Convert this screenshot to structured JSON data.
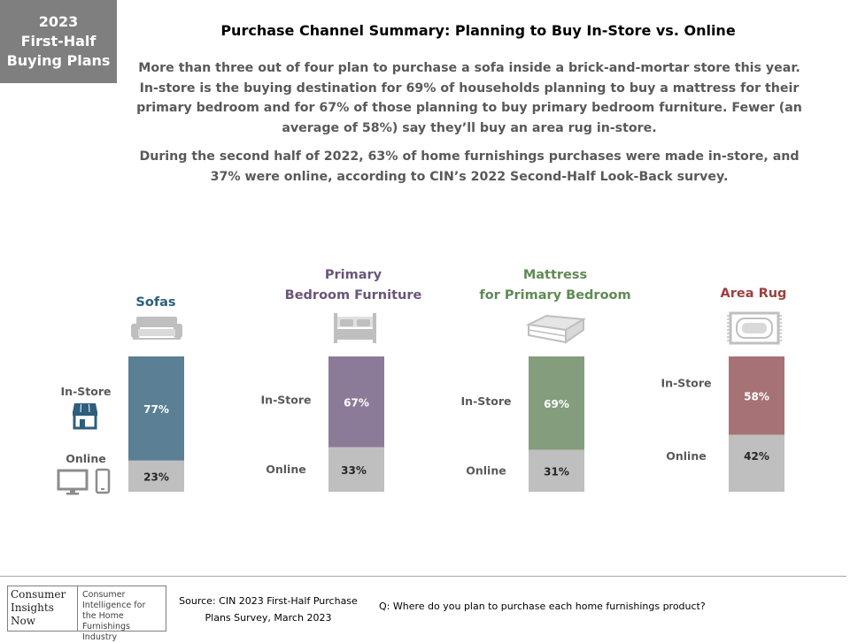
{
  "badge": {
    "line1": "2023",
    "line2": "First-Half",
    "line3": "Buying Plans"
  },
  "title": "Purchase Channel Summary: Planning to Buy In-Store vs. Online",
  "summary": {
    "p1": "More than three out of four plan to purchase a sofa inside a brick-and-mortar store this year. In-store is the buying destination for 69% of households planning to buy a mattress for their primary bedroom and for 67% of those planning to buy primary bedroom furniture. Fewer (an average of 58%) say they’ll buy an area rug in-store.",
    "p2": "During the second half of 2022, 63% of home furnishings purchases were made in-store, and 37% were online, according to CIN’s 2022 Second-Half Look-Back survey."
  },
  "chart_data": {
    "type": "bar",
    "stacked": true,
    "categories": [
      "Sofas",
      "Primary\nBedroom Furniture",
      "Mattress\nfor Primary Bedroom",
      "Area Rug"
    ],
    "series": [
      {
        "name": "In-Store",
        "values": [
          77,
          67,
          69,
          58
        ],
        "labels": [
          "77%",
          "67%",
          "69%",
          "58%"
        ]
      },
      {
        "name": "Online",
        "values": [
          23,
          33,
          31,
          42
        ],
        "labels": [
          "23%",
          "33%",
          "31%",
          "42%"
        ]
      }
    ],
    "colors": {
      "instore": [
        "#5b7f95",
        "#8c7b98",
        "#849d7c",
        "#a77275"
      ],
      "online": "#bfbfbf",
      "titles": [
        "#2e5f7c",
        "#6a557a",
        "#5f8a55",
        "#9b3f3f"
      ]
    },
    "ylim": [
      0,
      100
    ]
  },
  "logo": {
    "left": "Consumer Insights Now",
    "right": "Consumer Intelligence for the Home Furnishings Industry"
  },
  "source": "Source: CIN 2023 First-Half Purchase Plans Survey, March 2023",
  "question": "Q: Where do you plan to purchase each home furnishings product?"
}
